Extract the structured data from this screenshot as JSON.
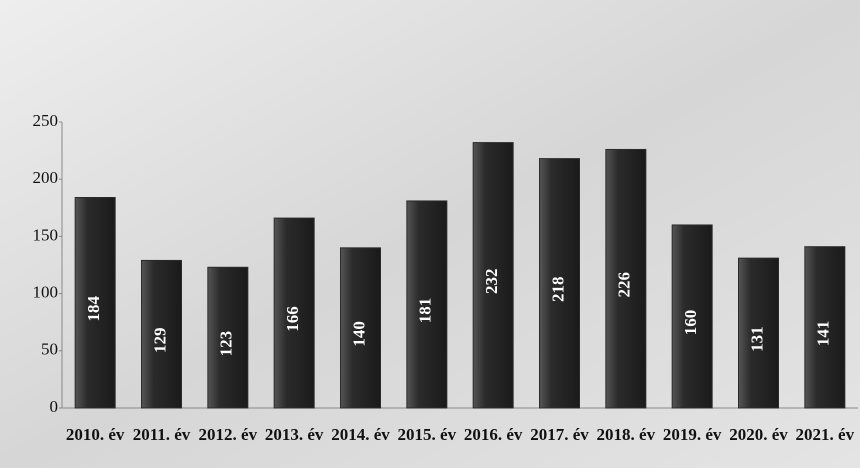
{
  "chart_data": {
    "type": "bar",
    "categories": [
      "2010. év",
      "2011. év",
      "2012. év",
      "2013. év",
      "2014. év",
      "2015. év",
      "2016. év",
      "2017. év",
      "2018. év",
      "2019. év",
      "2020. év",
      "2021. év"
    ],
    "values": [
      184,
      129,
      123,
      166,
      140,
      181,
      232,
      218,
      226,
      160,
      131,
      141
    ],
    "color": "#2b2b2b",
    "ylim": [
      0,
      250
    ],
    "yticks": [
      0,
      50,
      100,
      150,
      200,
      250
    ],
    "grid": false
  }
}
